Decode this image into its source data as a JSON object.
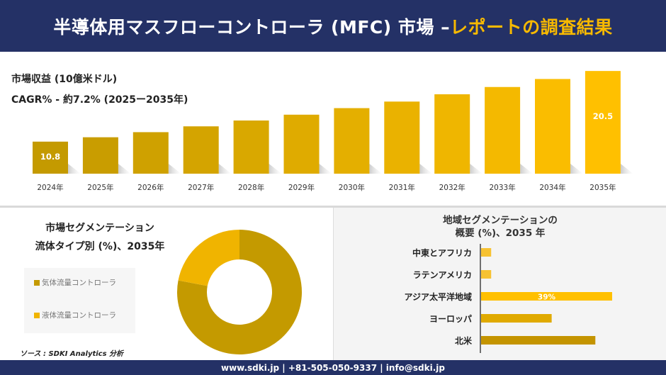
{
  "header": {
    "title_main": "半導体用マスフローコントローラ (MFC) 市場 –",
    "title_accent": "レポートの調査結果"
  },
  "revenue": {
    "label": "市場収益 (10億米ドル)",
    "cagr": "CAGR% - 約7.2% (2025ー2035年)"
  },
  "segment": {
    "title_line1": "市場セグメンテーション",
    "title_line2": "流体タイプ別 (%)、2035年",
    "source": "ソース : SDKI Analytics 分析"
  },
  "region": {
    "title_line1": "地域セグメンテーションの",
    "title_line2": "概要 (%)、2035 年"
  },
  "footer": {
    "contact": "www.sdki.jp | +81-505-050-9337 | info@sdki.jp"
  },
  "colors": {
    "navy": "#243166",
    "accent": "#f7b900",
    "gold_dark": "#c49a00",
    "gold": "#ffc000"
  },
  "chart_data": [
    {
      "type": "bar",
      "categories": [
        "2024年",
        "2025年",
        "2026年",
        "2027年",
        "2028年",
        "2029年",
        "2030年",
        "2031年",
        "2032年",
        "2033年",
        "2034年",
        "2035年"
      ],
      "values": [
        10.8,
        11.4,
        12.1,
        12.9,
        13.7,
        14.5,
        15.4,
        16.3,
        17.3,
        18.3,
        19.4,
        20.5
      ],
      "data_labels": {
        "0": "10.8",
        "11": "20.5"
      },
      "ylim": [
        6.4,
        21
      ],
      "grid": false
    },
    {
      "type": "pie",
      "donut": true,
      "categories": [
        "気体流量コントローラ",
        "液体流量コントローラ"
      ],
      "values": [
        78,
        22
      ],
      "colors": [
        "#c49a00",
        "#f0b400"
      ],
      "legend": "left"
    },
    {
      "type": "bar",
      "orientation": "horizontal",
      "categories": [
        "中東とアフリカ",
        "ラテンアメリカ",
        "アジア太平洋地域",
        "ヨーロッパ",
        "北米"
      ],
      "values": [
        3,
        3,
        39,
        21,
        34
      ],
      "data_labels": {
        "2": "39%"
      },
      "colors": [
        "#f7c232",
        "#f7c232",
        "#ffc000",
        "#e0aa00",
        "#c49400"
      ]
    }
  ]
}
